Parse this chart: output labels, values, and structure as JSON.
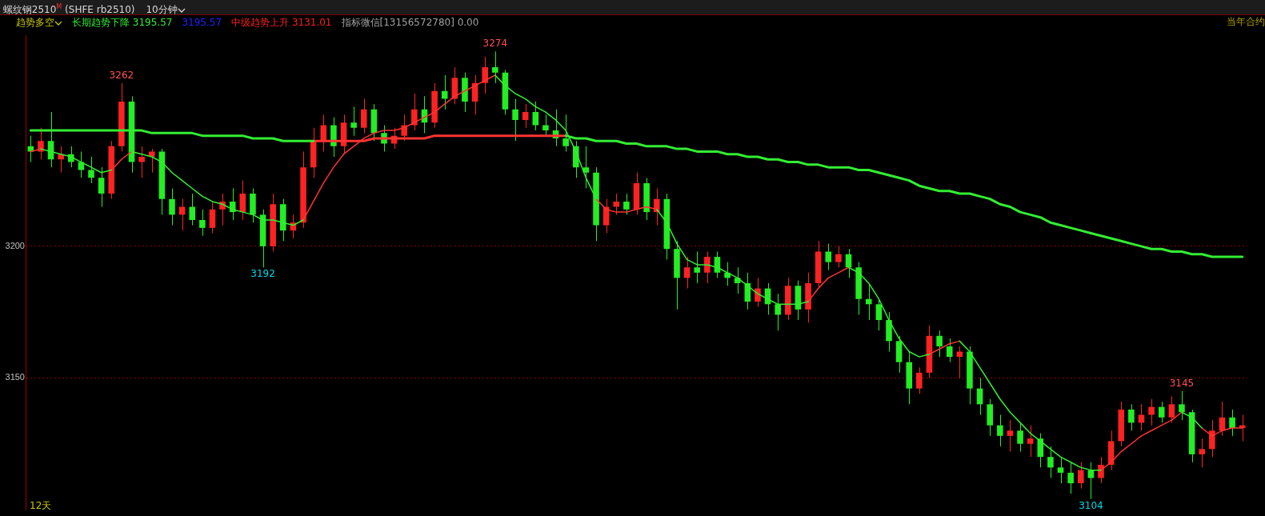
{
  "chart_data": {
    "type": "candlestick",
    "title": "螺纹钢2510$^{M}$ (SHFE rb2510)",
    "subtitle": "10分钟",
    "categories": [
      null,
      null,
      null,
      null,
      null,
      null,
      null,
      null,
      null,
      null,
      null,
      null,
      null,
      null,
      null,
      null,
      null,
      null,
      null,
      null,
      null,
      null,
      null,
      null,
      null,
      null,
      null,
      null,
      null,
      null,
      null,
      null,
      null,
      null,
      null,
      null,
      null,
      null,
      null,
      null,
      null,
      null,
      null,
      null,
      null,
      null,
      null,
      null,
      null,
      null,
      null,
      null,
      null,
      null,
      null,
      null,
      null,
      null,
      null,
      null,
      null,
      null,
      null,
      null,
      null,
      null,
      null,
      null,
      null,
      null,
      null,
      null,
      null,
      null,
      null,
      null,
      null,
      null,
      null,
      null,
      null,
      null,
      null,
      null,
      null,
      null,
      null,
      null,
      null,
      null,
      null,
      null,
      null,
      null,
      null,
      null,
      null,
      null,
      null,
      null,
      null,
      null,
      null,
      null,
      null,
      null,
      null,
      null,
      null,
      null,
      null,
      null,
      null,
      null,
      null,
      null,
      null,
      null,
      null,
      null,
      null
    ],
    "ohlc": [
      [
        3238,
        3242,
        3232,
        3236
      ],
      [
        3236,
        3245,
        3233,
        3240
      ],
      [
        3240,
        3251,
        3230,
        3233
      ],
      [
        3233,
        3238,
        3228,
        3235
      ],
      [
        3235,
        3238,
        3230,
        3232
      ],
      [
        3232,
        3236,
        3226,
        3229
      ],
      [
        3229,
        3234,
        3224,
        3226
      ],
      [
        3226,
        3230,
        3215,
        3220
      ],
      [
        3220,
        3240,
        3218,
        3238
      ],
      [
        3238,
        3262,
        3236,
        3255
      ],
      [
        3255,
        3257,
        3228,
        3232
      ],
      [
        3232,
        3238,
        3226,
        3234
      ],
      [
        3234,
        3237,
        3228,
        3236
      ],
      [
        3236,
        3237,
        3212,
        3218
      ],
      [
        3218,
        3222,
        3208,
        3212
      ],
      [
        3212,
        3218,
        3206,
        3215
      ],
      [
        3215,
        3220,
        3208,
        3210
      ],
      [
        3210,
        3214,
        3204,
        3207
      ],
      [
        3207,
        3217,
        3205,
        3214
      ],
      [
        3214,
        3220,
        3208,
        3217
      ],
      [
        3217,
        3222,
        3210,
        3213
      ],
      [
        3213,
        3225,
        3210,
        3220
      ],
      [
        3220,
        3222,
        3209,
        3212
      ],
      [
        3212,
        3214,
        3192,
        3200
      ],
      [
        3200,
        3220,
        3198,
        3216
      ],
      [
        3216,
        3218,
        3202,
        3206
      ],
      [
        3206,
        3212,
        3203,
        3209
      ],
      [
        3209,
        3236,
        3207,
        3230
      ],
      [
        3230,
        3245,
        3226,
        3240
      ],
      [
        3240,
        3250,
        3236,
        3246
      ],
      [
        3246,
        3249,
        3234,
        3238
      ],
      [
        3238,
        3250,
        3235,
        3247
      ],
      [
        3247,
        3253,
        3242,
        3245
      ],
      [
        3245,
        3256,
        3243,
        3252
      ],
      [
        3252,
        3254,
        3240,
        3243
      ],
      [
        3243,
        3246,
        3236,
        3239
      ],
      [
        3239,
        3245,
        3237,
        3242
      ],
      [
        3242,
        3250,
        3240,
        3246
      ],
      [
        3246,
        3258,
        3244,
        3252
      ],
      [
        3252,
        3257,
        3243,
        3247
      ],
      [
        3247,
        3262,
        3245,
        3259
      ],
      [
        3259,
        3265,
        3252,
        3256
      ],
      [
        3256,
        3268,
        3254,
        3264
      ],
      [
        3264,
        3266,
        3251,
        3255
      ],
      [
        3255,
        3265,
        3250,
        3262
      ],
      [
        3262,
        3272,
        3258,
        3268
      ],
      [
        3268,
        3274,
        3262,
        3266
      ],
      [
        3266,
        3267,
        3250,
        3252
      ],
      [
        3252,
        3256,
        3240,
        3248
      ],
      [
        3248,
        3254,
        3245,
        3251
      ],
      [
        3251,
        3255,
        3244,
        3246
      ],
      [
        3246,
        3250,
        3242,
        3244
      ],
      [
        3244,
        3252,
        3238,
        3241
      ],
      [
        3241,
        3250,
        3236,
        3238
      ],
      [
        3238,
        3240,
        3226,
        3230
      ],
      [
        3230,
        3238,
        3222,
        3228
      ],
      [
        3228,
        3230,
        3202,
        3208
      ],
      [
        3208,
        3218,
        3205,
        3215
      ],
      [
        3215,
        3220,
        3212,
        3217
      ],
      [
        3217,
        3220,
        3212,
        3214
      ],
      [
        3214,
        3228,
        3212,
        3224
      ],
      [
        3224,
        3226,
        3210,
        3213
      ],
      [
        3213,
        3222,
        3208,
        3218
      ],
      [
        3218,
        3220,
        3195,
        3199
      ],
      [
        3199,
        3202,
        3176,
        3188
      ],
      [
        3188,
        3196,
        3184,
        3192
      ],
      [
        3192,
        3198,
        3186,
        3190
      ],
      [
        3190,
        3198,
        3186,
        3196
      ],
      [
        3196,
        3198,
        3188,
        3190
      ],
      [
        3190,
        3194,
        3185,
        3188
      ],
      [
        3188,
        3192,
        3182,
        3186
      ],
      [
        3186,
        3190,
        3176,
        3179
      ],
      [
        3179,
        3188,
        3177,
        3184
      ],
      [
        3184,
        3186,
        3174,
        3178
      ],
      [
        3178,
        3182,
        3168,
        3174
      ],
      [
        3174,
        3188,
        3172,
        3185
      ],
      [
        3185,
        3187,
        3172,
        3176
      ],
      [
        3176,
        3190,
        3171,
        3186
      ],
      [
        3186,
        3202,
        3184,
        3198
      ],
      [
        3198,
        3201,
        3191,
        3194
      ],
      [
        3194,
        3200,
        3192,
        3197
      ],
      [
        3197,
        3199,
        3188,
        3192
      ],
      [
        3192,
        3194,
        3174,
        3180
      ],
      [
        3180,
        3186,
        3172,
        3178
      ],
      [
        3178,
        3180,
        3168,
        3172
      ],
      [
        3172,
        3175,
        3160,
        3164
      ],
      [
        3164,
        3166,
        3152,
        3156
      ],
      [
        3156,
        3160,
        3140,
        3146
      ],
      [
        3146,
        3154,
        3144,
        3152
      ],
      [
        3152,
        3170,
        3150,
        3166
      ],
      [
        3166,
        3168,
        3158,
        3162
      ],
      [
        3162,
        3165,
        3156,
        3158
      ],
      [
        3158,
        3162,
        3150,
        3160
      ],
      [
        3160,
        3162,
        3140,
        3146
      ],
      [
        3146,
        3150,
        3136,
        3140
      ],
      [
        3140,
        3142,
        3128,
        3132
      ],
      [
        3132,
        3136,
        3124,
        3128
      ],
      [
        3128,
        3134,
        3122,
        3130
      ],
      [
        3130,
        3133,
        3122,
        3125
      ],
      [
        3125,
        3132,
        3120,
        3127
      ],
      [
        3127,
        3129,
        3116,
        3120
      ],
      [
        3120,
        3124,
        3112,
        3116
      ],
      [
        3116,
        3120,
        3110,
        3114
      ],
      [
        3114,
        3118,
        3106,
        3110
      ],
      [
        3110,
        3118,
        3108,
        3115
      ],
      [
        3115,
        3118,
        3104,
        3112
      ],
      [
        3112,
        3120,
        3110,
        3117
      ],
      [
        3117,
        3130,
        3115,
        3126
      ],
      [
        3126,
        3141,
        3124,
        3138
      ],
      [
        3138,
        3140,
        3130,
        3133
      ],
      [
        3133,
        3140,
        3130,
        3136
      ],
      [
        3136,
        3142,
        3132,
        3139
      ],
      [
        3139,
        3141,
        3133,
        3135
      ],
      [
        3135,
        3143,
        3133,
        3140
      ],
      [
        3140,
        3145,
        3134,
        3137
      ],
      [
        3137,
        3138,
        3118,
        3121
      ],
      [
        3121,
        3127,
        3116,
        3123
      ],
      [
        3123,
        3134,
        3120,
        3130
      ],
      [
        3130,
        3141,
        3128,
        3135
      ],
      [
        3135,
        3138,
        3128,
        3131
      ],
      [
        3131,
        3136,
        3126,
        3132
      ]
    ],
    "colors": [
      "#22ee22",
      "#ff2222",
      "#22ee22",
      "#ff2222",
      "#22ee22",
      "#22ee22",
      "#22ee22",
      "#22ee22",
      "#ff2222",
      "#ff2222",
      "#22ee22",
      "#ff2222",
      "#ff2222",
      "#22ee22",
      "#22ee22",
      "#ff2222",
      "#22ee22",
      "#22ee22",
      "#ff2222",
      "#ff2222",
      "#22ee22",
      "#ff2222",
      "#22ee22",
      "#22ee22",
      "#ff2222",
      "#22ee22",
      "#ff2222",
      "#ff2222",
      "#ff2222",
      "#ff2222",
      "#22ee22",
      "#ff2222",
      "#22ee22",
      "#ff2222",
      "#22ee22",
      "#22ee22",
      "#ff2222",
      "#ff2222",
      "#ff2222",
      "#22ee22",
      "#ff2222",
      "#22ee22",
      "#ff2222",
      "#22ee22",
      "#ff2222",
      "#ff2222",
      "#22ee22",
      "#22ee22",
      "#22ee22",
      "#ff2222",
      "#22ee22",
      "#22ee22",
      "#22ee22",
      "#22ee22",
      "#22ee22",
      "#22ee22",
      "#22ee22",
      "#ff2222",
      "#ff2222",
      "#22ee22",
      "#ff2222",
      "#22ee22",
      "#ff2222",
      "#22ee22",
      "#22ee22",
      "#ff2222",
      "#22ee22",
      "#ff2222",
      "#22ee22",
      "#22ee22",
      "#22ee22",
      "#22ee22",
      "#ff2222",
      "#22ee22",
      "#22ee22",
      "#ff2222",
      "#22ee22",
      "#ff2222",
      "#ff2222",
      "#22ee22",
      "#ff2222",
      "#22ee22",
      "#22ee22",
      "#22ee22",
      "#22ee22",
      "#22ee22",
      "#22ee22",
      "#22ee22",
      "#ff2222",
      "#ff2222",
      "#22ee22",
      "#22ee22",
      "#ff2222",
      "#22ee22",
      "#22ee22",
      "#22ee22",
      "#22ee22",
      "#ff2222",
      "#22ee22",
      "#ff2222",
      "#22ee22",
      "#22ee22",
      "#22ee22",
      "#22ee22",
      "#ff2222",
      "#22ee22",
      "#ff2222",
      "#ff2222",
      "#ff2222",
      "#22ee22",
      "#ff2222",
      "#ff2222",
      "#22ee22",
      "#ff2222",
      "#22ee22",
      "#22ee22",
      "#ff2222",
      "#ff2222",
      "#ff2222",
      "#22ee22",
      "#ff2222"
    ],
    "series": [
      {
        "type": "line",
        "color": "#33ee33",
        "values": [
          3244,
          3244,
          3244,
          3244,
          3244,
          3244,
          3244,
          3244,
          3244,
          3244,
          3244,
          3244,
          3243,
          3243,
          3243,
          3243,
          3243,
          3242,
          3242,
          3242,
          3242,
          3242,
          3241,
          3241,
          3241,
          3240,
          3240,
          3240,
          3240,
          null,
          null,
          null,
          null,
          null,
          null,
          null,
          null,
          null,
          null,
          null,
          null,
          null,
          null,
          null,
          null,
          null,
          null,
          null,
          null,
          null,
          null,
          null,
          null,
          3242,
          3241,
          3241,
          3240,
          3240,
          3240,
          3239,
          3239,
          3238,
          3238,
          3238,
          3237,
          3237,
          3236,
          3236,
          3236,
          3235,
          3235,
          3234,
          3234,
          3233,
          3233,
          3232,
          3232,
          3231,
          3231,
          3230,
          3230,
          3230,
          3229,
          3229,
          3228,
          3227,
          3226,
          3225,
          3223,
          3222,
          3221,
          3221,
          3220,
          3220,
          3219,
          3218,
          3216,
          3215,
          3213,
          3212,
          3211,
          3209,
          3208,
          3207,
          3206,
          3205,
          3204,
          3203,
          3202,
          3201,
          3200,
          3199,
          3199,
          3198,
          3198,
          3197,
          3197,
          3196,
          3196,
          3196,
          3196
        ]
      },
      {
        "type": "line",
        "color": "#ff3333",
        "values": [
          null,
          null,
          null,
          null,
          null,
          null,
          null,
          null,
          null,
          null,
          null,
          null,
          null,
          null,
          null,
          null,
          null,
          null,
          null,
          null,
          null,
          null,
          null,
          null,
          null,
          null,
          null,
          null,
          3240,
          3240,
          3240,
          3240,
          3240,
          3240,
          3241,
          3241,
          3241,
          3241,
          3241,
          3241,
          3242,
          3242,
          3242,
          3242,
          3242,
          3242,
          3242,
          3242,
          3242,
          3242,
          3242,
          3242,
          3242,
          3242,
          null,
          null,
          null,
          null,
          null,
          null,
          null,
          null,
          null,
          null,
          null,
          null,
          null,
          null,
          null,
          null,
          null,
          null,
          null,
          null,
          null,
          null,
          null,
          null,
          null,
          null,
          null,
          null,
          null,
          null,
          null,
          null,
          null,
          null,
          null,
          null,
          null,
          null,
          null,
          null,
          null,
          null,
          null,
          null,
          null,
          null,
          null,
          null,
          null,
          null,
          null,
          null,
          null,
          null,
          null,
          null,
          null,
          null,
          null,
          null,
          null,
          null,
          null,
          null,
          null,
          null,
          null
        ]
      },
      {
        "type": "line",
        "color": "#33ee33",
        "values": [
          null,
          3237,
          3236,
          3235,
          3234,
          3232,
          3230,
          3228,
          3229,
          null,
          3236,
          3235,
          3234,
          3232,
          3228,
          3225,
          3222,
          3219,
          3217,
          3216,
          3214,
          3213,
          3212,
          3210,
          3210,
          3209,
          3208,
          3210,
          null,
          null,
          null,
          null,
          null,
          null,
          null,
          null,
          null,
          null,
          null,
          null,
          null,
          null,
          null,
          null,
          null,
          null,
          3265,
          3261,
          3258,
          3256,
          3253,
          3251,
          3248,
          3244,
          3236,
          3226,
          3218,
          null,
          null,
          null,
          null,
          null,
          3214,
          3209,
          3201,
          3195,
          3193,
          3193,
          3192,
          3190,
          3188,
          3185,
          3182,
          3180,
          3178,
          3178,
          3178,
          3179,
          null,
          null,
          null,
          3192,
          3190,
          3186,
          3180,
          3172,
          3165,
          3160,
          3158,
          3159,
          null,
          null,
          3164,
          3160,
          3154,
          3148,
          3142,
          3137,
          3133,
          3129,
          3126,
          3123,
          3120,
          3118,
          3116,
          3115,
          3115,
          null,
          null,
          null,
          null,
          null,
          null,
          null,
          3137,
          3135,
          3131,
          null,
          null,
          null,
          null
        ]
      },
      {
        "type": "line",
        "color": "#ff3333",
        "values": [
          3236,
          3237,
          null,
          null,
          null,
          null,
          null,
          null,
          3229,
          3233,
          3236,
          null,
          null,
          null,
          null,
          null,
          null,
          null,
          null,
          null,
          null,
          null,
          null,
          null,
          null,
          null,
          null,
          3210,
          3217,
          3224,
          3230,
          3235,
          3238,
          3241,
          3243,
          3244,
          3244,
          3245,
          3247,
          3249,
          3251,
          3254,
          3257,
          3259,
          3261,
          3263,
          3265,
          null,
          null,
          null,
          null,
          null,
          null,
          null,
          null,
          null,
          3218,
          3214,
          3213,
          3213,
          3214,
          3215,
          3214,
          null,
          null,
          null,
          null,
          null,
          null,
          null,
          null,
          null,
          null,
          null,
          null,
          null,
          null,
          3179,
          3184,
          3188,
          3190,
          3192,
          null,
          null,
          null,
          null,
          null,
          null,
          null,
          3159,
          3161,
          3163,
          3164,
          null,
          null,
          null,
          null,
          null,
          null,
          null,
          null,
          null,
          null,
          null,
          null,
          null,
          3115,
          3118,
          3122,
          3125,
          3128,
          3130,
          3132,
          3134,
          3137,
          null,
          3131,
          3128,
          3130,
          3131,
          3131
        ]
      }
    ],
    "ylim": [
      3100,
      3280
    ],
    "yticks": [
      3200,
      3150
    ],
    "grid": "y",
    "legend": false,
    "tick_labels": "y",
    "annotations": [
      "趋势多空",
      "长期趋势下降 3195.57",
      "3195.57",
      "中级趋势上升 3131.01",
      "指标微信[13156572780] 0.00",
      "当年合约",
      "12天",
      {
        "text": "3262",
        "y": 3262
      },
      {
        "text": "3274",
        "y": 3274
      },
      {
        "text": "3192",
        "y": 3192
      },
      {
        "text": "3104",
        "y": 3104
      },
      {
        "text": "3145",
        "y": 3145
      }
    ]
  }
}
